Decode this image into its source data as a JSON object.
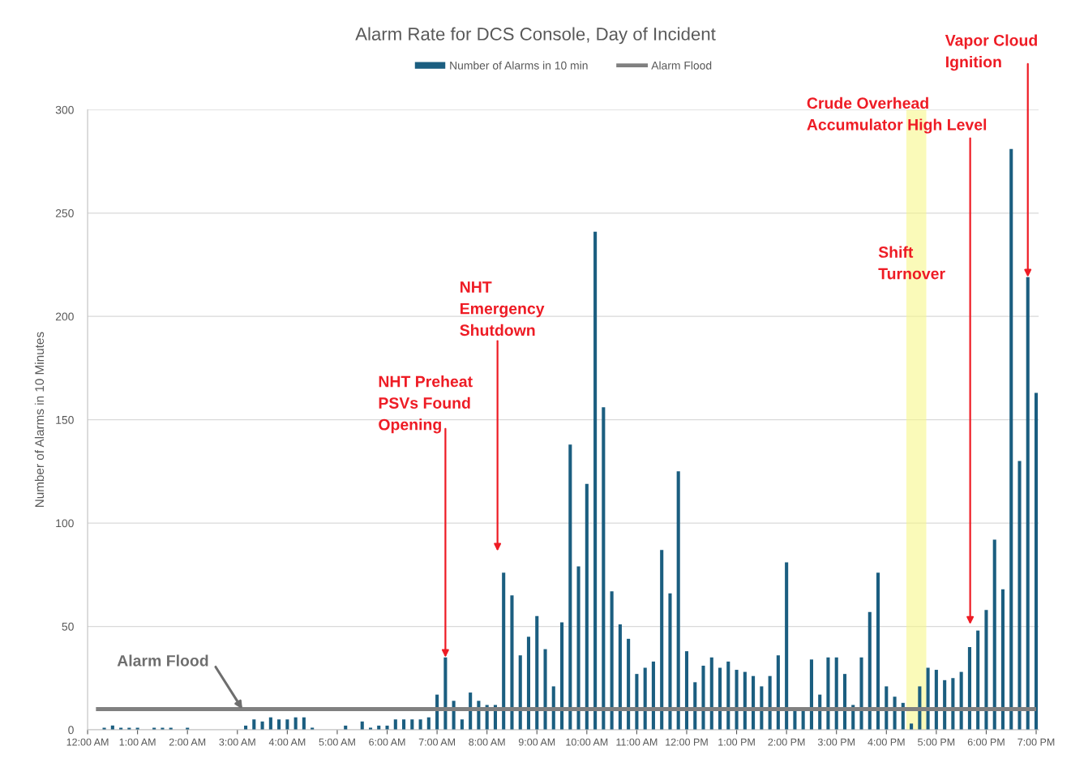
{
  "chart_data": {
    "type": "bar",
    "title": "Alarm Rate for DCS Console, Day of Incident",
    "ylabel": "Number of Alarms in 10 Minutes",
    "x": [
      0,
      0.167,
      0.333,
      0.5,
      0.667,
      0.833,
      1,
      1.167,
      1.333,
      1.5,
      1.667,
      1.833,
      2,
      2.167,
      2.333,
      2.5,
      2.667,
      2.833,
      3,
      3.167,
      3.333,
      3.5,
      3.667,
      3.833,
      4,
      4.167,
      4.333,
      4.5,
      4.667,
      4.833,
      5,
      5.167,
      5.333,
      5.5,
      5.667,
      5.833,
      6,
      6.167,
      6.333,
      6.5,
      6.667,
      6.833,
      7,
      7.167,
      7.333,
      7.5,
      7.667,
      7.833,
      8,
      8.167,
      8.333,
      8.5,
      8.667,
      8.833,
      9,
      9.167,
      9.333,
      9.5,
      9.667,
      9.833,
      10,
      10.167,
      10.333,
      10.5,
      10.667,
      10.833,
      11,
      11.167,
      11.333,
      11.5,
      11.667,
      11.833,
      12,
      12.167,
      12.333,
      12.5,
      12.667,
      12.833,
      13,
      13.167,
      13.333,
      13.5,
      13.667,
      13.833,
      14,
      14.167,
      14.333,
      14.5,
      14.667,
      14.833,
      15,
      15.167,
      15.333,
      15.5,
      15.667,
      15.833,
      16,
      16.167,
      16.333,
      16.5,
      16.667,
      16.833,
      17,
      17.167,
      17.333,
      17.5,
      17.667,
      17.833,
      18,
      18.167,
      18.333,
      18.5,
      18.667,
      18.833,
      19
    ],
    "series": [
      {
        "name": "Number of Alarms in 10 min",
        "color": "#1b5e80",
        "values": [
          0,
          0,
          1,
          2,
          1,
          1,
          1,
          0,
          1,
          1,
          1,
          0,
          1,
          0,
          0,
          0,
          0,
          0,
          0,
          2,
          5,
          4,
          6,
          5,
          5,
          6,
          6,
          1,
          0,
          0,
          0,
          2,
          0,
          4,
          1,
          2,
          2,
          5,
          5,
          5,
          5,
          6,
          17,
          35,
          14,
          5,
          18,
          14,
          12,
          12,
          76,
          65,
          36,
          45,
          55,
          39,
          21,
          52,
          138,
          79,
          119,
          241,
          156,
          67,
          51,
          44,
          27,
          30,
          33,
          87,
          66,
          125,
          38,
          23,
          31,
          35,
          30,
          33,
          29,
          28,
          26,
          21,
          26,
          36,
          81,
          10,
          10,
          34,
          17,
          35,
          35,
          27,
          12,
          35,
          57,
          76,
          21,
          16,
          13,
          3,
          21,
          30,
          29,
          24,
          25,
          28,
          40,
          48,
          58,
          92,
          68,
          281,
          130,
          219,
          163
        ]
      },
      {
        "name": "Alarm Flood",
        "type": "line",
        "color": "#808080",
        "x": [
          0.167,
          19
        ],
        "values": [
          10,
          10
        ]
      }
    ],
    "xlim": [
      0,
      19.05
    ],
    "xticks": [
      {
        "value": 0,
        "label": "12:00 AM"
      },
      {
        "value": 1,
        "label": "1:00 AM"
      },
      {
        "value": 2,
        "label": "2:00 AM"
      },
      {
        "value": 3,
        "label": "3:00 AM"
      },
      {
        "value": 4,
        "label": "4:00 AM"
      },
      {
        "value": 5,
        "label": "5:00 AM"
      },
      {
        "value": 6,
        "label": "6:00 AM"
      },
      {
        "value": 7,
        "label": "7:00 AM"
      },
      {
        "value": 8,
        "label": "8:00 AM"
      },
      {
        "value": 9,
        "label": "9:00 AM"
      },
      {
        "value": 10,
        "label": "10:00 AM"
      },
      {
        "value": 11,
        "label": "11:00 AM"
      },
      {
        "value": 12,
        "label": "12:00 PM"
      },
      {
        "value": 13,
        "label": "1:00 PM"
      },
      {
        "value": 14,
        "label": "2:00 PM"
      },
      {
        "value": 15,
        "label": "3:00 PM"
      },
      {
        "value": 16,
        "label": "4:00 PM"
      },
      {
        "value": 17,
        "label": "5:00 PM"
      },
      {
        "value": 18,
        "label": "6:00 PM"
      },
      {
        "value": 19,
        "label": "7:00 PM"
      }
    ],
    "ylim": [
      0,
      300
    ],
    "yticks": [
      0,
      50,
      100,
      150,
      200,
      250,
      300
    ],
    "bands": [
      {
        "axis": "x",
        "from": 16.4,
        "to": 16.8,
        "label": "Shift\nTurnover",
        "color": "#f7f78a"
      }
    ],
    "annotations": [
      {
        "text": "Alarm Flood",
        "x": 3.1,
        "y": 10
      },
      {
        "text": "NHT Preheat\nPSVs Found\nOpening",
        "x": 7.167,
        "y": 35
      },
      "NHT\nEmergency\nShutdown",
      "Crude Overhead\nAccumulator High Level",
      {
        "text": "Vapor Cloud\nIgnition",
        "x": 18.833,
        "y": 219
      }
    ],
    "grid": "y",
    "legend": "top"
  }
}
